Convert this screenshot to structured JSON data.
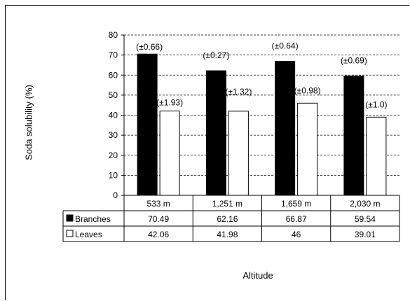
{
  "chart_data": {
    "type": "bar",
    "categories": [
      "533 m",
      "1,251 m",
      "1,659 m",
      "2,030 m"
    ],
    "series": [
      {
        "name": "Branches",
        "values": [
          70.49,
          62.16,
          66.87,
          59.54
        ],
        "errors": [
          "(±0.66)",
          "(±0.27)",
          "(±0.64)",
          "(±0.69)"
        ],
        "color": "#000000"
      },
      {
        "name": "Leaves",
        "values": [
          42.06,
          41.98,
          46,
          39.01
        ],
        "errors": [
          "(±1.93)",
          "(±1.32)",
          "(±0.98)",
          "(±1.0)"
        ],
        "color": "#ffffff"
      }
    ],
    "table_values": [
      [
        "70.49",
        "62.16",
        "66.87",
        "59.54"
      ],
      [
        "42.06",
        "41.98",
        "46",
        "39.01"
      ]
    ],
    "ylabel": "Soda solubility (%)",
    "xlabel": "Altitude",
    "ylim": [
      0,
      80
    ],
    "yticks": [
      0,
      10,
      20,
      30,
      40,
      50,
      60,
      70,
      80
    ],
    "grid": "dashed horizontal",
    "legend": "data-table"
  }
}
